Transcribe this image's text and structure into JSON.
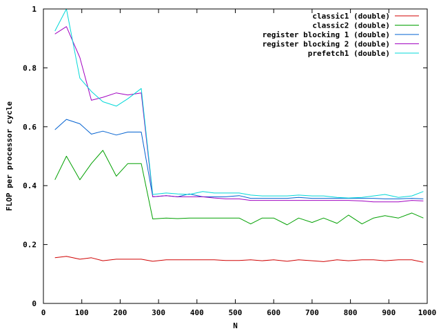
{
  "chart_data": {
    "type": "line",
    "title": "",
    "xlabel": "N",
    "ylabel": "FLOP per processor cycle",
    "xlim": [
      0,
      1000
    ],
    "ylim": [
      0,
      1
    ],
    "xticks": [
      0,
      100,
      200,
      300,
      400,
      500,
      600,
      700,
      800,
      900,
      1000
    ],
    "xtick_labels": [
      "0",
      "100",
      "200",
      "300",
      "400",
      "500",
      "600",
      "700",
      "800",
      "900",
      "1000"
    ],
    "yticks": [
      0,
      0.2,
      0.4,
      0.6,
      0.8,
      1
    ],
    "ytick_labels": [
      "0",
      "0.2",
      "0.4",
      "0.6",
      "0.8",
      "1"
    ],
    "grid": false,
    "legend_position": "top-right",
    "series": [
      {
        "name": "classic1 (double)",
        "color": "#d00000",
        "x": [
          30,
          60,
          95,
          125,
          155,
          190,
          220,
          255,
          285,
          320,
          350,
          380,
          415,
          445,
          475,
          510,
          540,
          570,
          600,
          635,
          665,
          700,
          730,
          765,
          795,
          830,
          860,
          890,
          925,
          960,
          990
        ],
        "y": [
          0.155,
          0.16,
          0.15,
          0.155,
          0.145,
          0.15,
          0.15,
          0.15,
          0.143,
          0.148,
          0.148,
          0.148,
          0.148,
          0.148,
          0.146,
          0.146,
          0.148,
          0.145,
          0.148,
          0.143,
          0.148,
          0.145,
          0.142,
          0.148,
          0.145,
          0.148,
          0.148,
          0.145,
          0.148,
          0.148,
          0.14
        ]
      },
      {
        "name": "classic2 (double)",
        "color": "#00a000",
        "x": [
          30,
          60,
          95,
          125,
          155,
          190,
          220,
          255,
          285,
          320,
          350,
          380,
          415,
          445,
          475,
          510,
          540,
          570,
          600,
          635,
          665,
          700,
          730,
          765,
          795,
          830,
          860,
          890,
          925,
          960,
          990
        ],
        "y": [
          0.42,
          0.5,
          0.42,
          0.475,
          0.52,
          0.432,
          0.475,
          0.475,
          0.287,
          0.29,
          0.288,
          0.29,
          0.29,
          0.29,
          0.29,
          0.29,
          0.27,
          0.29,
          0.29,
          0.267,
          0.29,
          0.275,
          0.29,
          0.272,
          0.3,
          0.27,
          0.29,
          0.298,
          0.29,
          0.307,
          0.29
        ]
      },
      {
        "name": "register blocking 1 (double)",
        "color": "#0060d0",
        "x": [
          30,
          60,
          95,
          125,
          155,
          190,
          220,
          255,
          285,
          320,
          350,
          380,
          415,
          445,
          475,
          510,
          540,
          570,
          600,
          635,
          665,
          700,
          730,
          765,
          795,
          830,
          860,
          890,
          925,
          960,
          990
        ],
        "y": [
          0.59,
          0.625,
          0.61,
          0.575,
          0.585,
          0.572,
          0.582,
          0.582,
          0.362,
          0.366,
          0.362,
          0.372,
          0.362,
          0.362,
          0.362,
          0.366,
          0.357,
          0.357,
          0.357,
          0.357,
          0.36,
          0.357,
          0.357,
          0.357,
          0.357,
          0.357,
          0.357,
          0.355,
          0.355,
          0.357,
          0.355
        ]
      },
      {
        "name": "register blocking 2 (double)",
        "color": "#a000c0",
        "x": [
          30,
          60,
          95,
          125,
          155,
          190,
          220,
          255,
          285,
          320,
          350,
          380,
          415,
          445,
          475,
          510,
          540,
          570,
          600,
          635,
          665,
          700,
          730,
          765,
          795,
          830,
          860,
          890,
          925,
          960,
          990
        ],
        "y": [
          0.915,
          0.94,
          0.835,
          0.69,
          0.7,
          0.715,
          0.708,
          0.715,
          0.362,
          0.366,
          0.362,
          0.362,
          0.362,
          0.358,
          0.355,
          0.355,
          0.35,
          0.35,
          0.35,
          0.35,
          0.35,
          0.35,
          0.35,
          0.35,
          0.35,
          0.348,
          0.345,
          0.345,
          0.345,
          0.35,
          0.348
        ]
      },
      {
        "name": "prefetch1 (double)",
        "color": "#00d8d8",
        "x": [
          30,
          60,
          95,
          125,
          155,
          190,
          220,
          255,
          285,
          320,
          350,
          380,
          415,
          445,
          475,
          510,
          540,
          570,
          600,
          635,
          665,
          700,
          730,
          765,
          795,
          830,
          860,
          890,
          925,
          960,
          990
        ],
        "y": [
          0.925,
          1.0,
          0.765,
          0.72,
          0.685,
          0.67,
          0.695,
          0.73,
          0.37,
          0.375,
          0.372,
          0.37,
          0.38,
          0.375,
          0.375,
          0.375,
          0.368,
          0.365,
          0.365,
          0.365,
          0.368,
          0.365,
          0.365,
          0.36,
          0.358,
          0.36,
          0.365,
          0.37,
          0.36,
          0.365,
          0.38
        ]
      }
    ]
  }
}
